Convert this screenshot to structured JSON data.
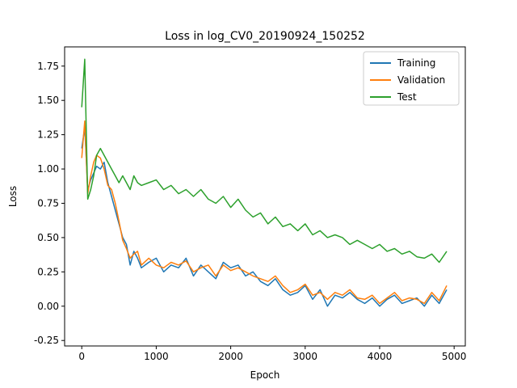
{
  "chart_data": {
    "type": "line",
    "title": "Loss in log_CV0_20190924_150252",
    "xlabel": "Epoch",
    "ylabel": "Loss",
    "xlim": [
      -230,
      5150
    ],
    "ylim": [
      -0.29,
      1.89
    ],
    "xticks": [
      0,
      1000,
      2000,
      3000,
      4000,
      5000
    ],
    "yticks": [
      -0.25,
      0.0,
      0.25,
      0.5,
      0.75,
      1.0,
      1.25,
      1.5,
      1.75
    ],
    "grid": false,
    "legend_position": "top-right",
    "series": [
      {
        "name": "Training",
        "color": "#1f77b4",
        "x": [
          0,
          40,
          80,
          120,
          160,
          200,
          250,
          300,
          350,
          400,
          450,
          500,
          550,
          600,
          650,
          700,
          750,
          800,
          900,
          1000,
          1100,
          1200,
          1300,
          1400,
          1500,
          1600,
          1700,
          1800,
          1900,
          2000,
          2100,
          2200,
          2300,
          2400,
          2500,
          2600,
          2700,
          2800,
          2900,
          3000,
          3100,
          3200,
          3300,
          3400,
          3500,
          3600,
          3700,
          3800,
          3900,
          4000,
          4100,
          4200,
          4300,
          4400,
          4500,
          4600,
          4700,
          4800,
          4900
        ],
        "values": [
          1.15,
          1.3,
          0.85,
          0.92,
          0.97,
          1.02,
          1.0,
          1.05,
          0.9,
          0.8,
          0.7,
          0.6,
          0.5,
          0.45,
          0.3,
          0.4,
          0.35,
          0.28,
          0.32,
          0.35,
          0.25,
          0.3,
          0.28,
          0.35,
          0.22,
          0.3,
          0.25,
          0.2,
          0.32,
          0.28,
          0.3,
          0.22,
          0.25,
          0.18,
          0.15,
          0.2,
          0.12,
          0.08,
          0.1,
          0.15,
          0.05,
          0.12,
          0.0,
          0.08,
          0.06,
          0.1,
          0.05,
          0.02,
          0.06,
          0.0,
          0.05,
          0.08,
          0.02,
          0.04,
          0.06,
          0.0,
          0.08,
          0.02,
          0.12
        ]
      },
      {
        "name": "Validation",
        "color": "#ff7f0e",
        "x": [
          0,
          40,
          80,
          120,
          160,
          200,
          250,
          300,
          350,
          400,
          450,
          500,
          550,
          600,
          650,
          700,
          750,
          800,
          900,
          1000,
          1100,
          1200,
          1300,
          1400,
          1500,
          1600,
          1700,
          1800,
          1900,
          2000,
          2100,
          2200,
          2300,
          2400,
          2500,
          2600,
          2700,
          2800,
          2900,
          3000,
          3100,
          3200,
          3300,
          3400,
          3500,
          3600,
          3700,
          3800,
          3900,
          4000,
          4100,
          4200,
          4300,
          4400,
          4500,
          4600,
          4700,
          4800,
          4900
        ],
        "values": [
          1.08,
          1.35,
          0.82,
          0.95,
          1.05,
          1.1,
          1.08,
          1.0,
          0.88,
          0.85,
          0.75,
          0.62,
          0.48,
          0.42,
          0.35,
          0.38,
          0.4,
          0.3,
          0.35,
          0.3,
          0.28,
          0.32,
          0.3,
          0.33,
          0.25,
          0.28,
          0.3,
          0.22,
          0.3,
          0.26,
          0.28,
          0.25,
          0.22,
          0.2,
          0.18,
          0.22,
          0.15,
          0.1,
          0.12,
          0.16,
          0.08,
          0.1,
          0.05,
          0.1,
          0.08,
          0.12,
          0.06,
          0.05,
          0.08,
          0.02,
          0.06,
          0.1,
          0.04,
          0.06,
          0.05,
          0.02,
          0.1,
          0.04,
          0.15
        ]
      },
      {
        "name": "Test",
        "color": "#2ca02c",
        "x": [
          0,
          40,
          80,
          120,
          160,
          200,
          250,
          300,
          350,
          400,
          450,
          500,
          550,
          600,
          650,
          700,
          750,
          800,
          900,
          1000,
          1100,
          1200,
          1300,
          1400,
          1500,
          1600,
          1700,
          1800,
          1900,
          2000,
          2100,
          2200,
          2300,
          2400,
          2500,
          2600,
          2700,
          2800,
          2900,
          3000,
          3100,
          3200,
          3300,
          3400,
          3500,
          3600,
          3700,
          3800,
          3900,
          4000,
          4100,
          4200,
          4300,
          4400,
          4500,
          4600,
          4700,
          4800,
          4900
        ],
        "values": [
          1.45,
          1.8,
          0.78,
          0.85,
          0.95,
          1.1,
          1.15,
          1.1,
          1.05,
          1.0,
          0.95,
          0.9,
          0.95,
          0.9,
          0.85,
          0.95,
          0.9,
          0.88,
          0.9,
          0.92,
          0.85,
          0.88,
          0.82,
          0.85,
          0.8,
          0.85,
          0.78,
          0.75,
          0.8,
          0.72,
          0.78,
          0.7,
          0.65,
          0.68,
          0.6,
          0.65,
          0.58,
          0.6,
          0.55,
          0.6,
          0.52,
          0.55,
          0.5,
          0.52,
          0.5,
          0.45,
          0.48,
          0.45,
          0.42,
          0.45,
          0.4,
          0.42,
          0.38,
          0.4,
          0.36,
          0.35,
          0.38,
          0.32,
          0.4
        ]
      }
    ]
  }
}
